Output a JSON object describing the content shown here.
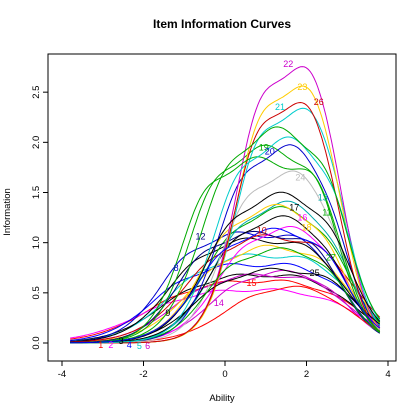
{
  "chart_data": {
    "type": "line",
    "title": "Item Information Curves",
    "xlabel": "Ability",
    "ylabel": "Information",
    "xlim": [
      -4,
      4
    ],
    "ylim": [
      0,
      3
    ],
    "x_ticks": [
      "-4",
      "-2",
      "0",
      "2",
      "4"
    ],
    "x_tick_values": [
      -4,
      -2,
      0,
      2,
      4
    ],
    "y_ticks": [
      "0.0",
      "0.5",
      "1.0",
      "1.5",
      "2.0",
      "2.5"
    ],
    "y_tick_values": [
      0,
      0.5,
      1.0,
      1.5,
      2.0,
      2.5
    ],
    "grid": false,
    "series": [
      {
        "label": "1",
        "color": "#ff0000",
        "a": 0.85,
        "b_lo": -1.9,
        "b_hi": 3.3,
        "max": 0.64,
        "lx": -3.05,
        "ly": -0.02
      },
      {
        "label": "2",
        "color": "#ff00ff",
        "a": 0.8,
        "b_lo": -2.1,
        "b_hi": 3.3,
        "max": 0.55,
        "lx": -2.8,
        "ly": -0.02
      },
      {
        "label": "3",
        "color": "#000000",
        "a": 0.95,
        "b_lo": -1.6,
        "b_hi": 3.2,
        "max": 0.7,
        "lx": -2.55,
        "ly": 0.02
      },
      {
        "label": "4",
        "color": "#0000ff",
        "a": 1.0,
        "b_lo": -1.8,
        "b_hi": 3.2,
        "max": 0.8,
        "lx": -2.35,
        "ly": -0.02
      },
      {
        "label": "5",
        "color": "#00cccc",
        "a": 1.0,
        "b_lo": -1.4,
        "b_hi": 3.2,
        "max": 0.9,
        "lx": -2.1,
        "ly": -0.03
      },
      {
        "label": "6",
        "color": "#cc00cc",
        "a": 1.0,
        "b_lo": -1.3,
        "b_hi": 3.1,
        "max": 0.7,
        "lx": -1.9,
        "ly": -0.03
      },
      {
        "label": "7",
        "color": "#ffcc00",
        "a": 1.0,
        "b_lo": -0.9,
        "b_hi": 3.1,
        "max": 1.0,
        "lx": -1.1,
        "ly": 0.55
      },
      {
        "label": "8",
        "color": "#0000cc",
        "a": 1.2,
        "b_lo": -1.6,
        "b_hi": 2.9,
        "max": 1.1,
        "lx": -1.2,
        "ly": 0.75
      },
      {
        "label": "9",
        "color": "#000000",
        "a": 1.1,
        "b_lo": -1.4,
        "b_hi": 3.0,
        "max": 1.05,
        "lx": -1.4,
        "ly": 0.3
      },
      {
        "label": "10",
        "color": "#cc0000",
        "a": 1.0,
        "b_lo": -1.0,
        "b_hi": 3.2,
        "max": 1.1,
        "lx": 0.9,
        "ly": 1.12
      },
      {
        "label": "11",
        "color": "#00aa00",
        "a": 1.1,
        "b_lo": -0.5,
        "b_hi": 3.0,
        "max": 1.4,
        "lx": 2.5,
        "ly": 1.3
      },
      {
        "label": "12",
        "color": "#000080",
        "a": 1.3,
        "b_lo": -1.2,
        "b_hi": 2.9,
        "max": 1.1,
        "lx": -0.6,
        "ly": 1.06
      },
      {
        "label": "13",
        "color": "#00aaaa",
        "a": 1.2,
        "b_lo": -0.3,
        "b_hi": 3.0,
        "max": 1.45,
        "lx": 2.4,
        "ly": 1.45
      },
      {
        "label": "14",
        "color": "#cc00cc",
        "a": 1.1,
        "b_lo": -0.4,
        "b_hi": 3.0,
        "max": 0.75,
        "lx": -0.15,
        "ly": 0.4
      },
      {
        "label": "15",
        "color": "#ff0000",
        "a": 1.0,
        "b_lo": 0.0,
        "b_hi": 3.1,
        "max": 0.62,
        "lx": 0.65,
        "ly": 0.6
      },
      {
        "label": "16",
        "color": "#ff00ff",
        "a": 1.2,
        "b_lo": -0.2,
        "b_hi": 3.0,
        "max": 1.2,
        "lx": 1.9,
        "ly": 1.25
      },
      {
        "label": "17",
        "color": "#000000",
        "a": 1.2,
        "b_lo": -0.4,
        "b_hi": 2.9,
        "max": 1.3,
        "lx": 1.7,
        "ly": 1.35
      },
      {
        "label": "18",
        "color": "#ffcc00",
        "a": 1.2,
        "b_lo": -0.6,
        "b_hi": 2.9,
        "max": 1.4,
        "lx": 2.0,
        "ly": 1.15
      },
      {
        "label": "19",
        "color": "#00aa00",
        "a": 1.4,
        "b_lo": -0.9,
        "b_hi": 2.8,
        "max": 1.95,
        "lx": 0.95,
        "ly": 1.95
      },
      {
        "label": "20",
        "color": "#0000cc",
        "a": 1.4,
        "b_lo": -0.2,
        "b_hi": 2.9,
        "max": 2.0,
        "lx": 1.1,
        "ly": 1.91
      },
      {
        "label": "21",
        "color": "#00cccc",
        "a": 1.6,
        "b_lo": 0.2,
        "b_hi": 3.0,
        "max": 2.38,
        "lx": 1.35,
        "ly": 2.35
      },
      {
        "label": "22",
        "color": "#cc00cc",
        "a": 1.6,
        "b_lo": 0.25,
        "b_hi": 2.9,
        "max": 2.85,
        "lx": 1.55,
        "ly": 2.78
      },
      {
        "label": "23",
        "color": "#ffcc00",
        "a": 1.6,
        "b_lo": 0.25,
        "b_hi": 2.9,
        "max": 2.65,
        "lx": 1.9,
        "ly": 2.55
      },
      {
        "label": "24",
        "color": "#bbbbbb",
        "a": 1.4,
        "b_lo": -0.1,
        "b_hi": 2.9,
        "max": 1.75,
        "lx": 1.85,
        "ly": 1.65
      },
      {
        "label": "25",
        "color": "#000000",
        "a": 1.1,
        "b_lo": -0.8,
        "b_hi": 3.3,
        "max": 0.75,
        "lx": 2.2,
        "ly": 0.7
      },
      {
        "label": "26",
        "color": "#cc0000",
        "a": 1.6,
        "b_lo": 0.2,
        "b_hi": 2.85,
        "max": 2.48,
        "lx": 2.3,
        "ly": 2.4
      },
      {
        "label": "27",
        "color": "#00aa00",
        "a": 1.3,
        "b_lo": -0.5,
        "b_hi": 3.0,
        "max": 0.95,
        "lx": 2.6,
        "ly": 0.85
      },
      {
        "label": "",
        "color": "#00aa00",
        "a": 1.5,
        "b_lo": -1.1,
        "b_hi": 2.9,
        "max": 1.82,
        "lx": null,
        "ly": null
      },
      {
        "label": "",
        "color": "#00cccc",
        "a": 1.4,
        "b_lo": -0.3,
        "b_hi": 3.05,
        "max": 2.05,
        "lx": null,
        "ly": null
      },
      {
        "label": "",
        "color": "#00aa00",
        "a": 1.3,
        "b_lo": -0.6,
        "b_hi": 3.0,
        "max": 2.15,
        "lx": null,
        "ly": null
      },
      {
        "label": "",
        "color": "#000000",
        "a": 1.2,
        "b_lo": -0.5,
        "b_hi": 3.05,
        "max": 1.52,
        "lx": null,
        "ly": null
      },
      {
        "label": "",
        "color": "#0000ff",
        "a": 1.2,
        "b_lo": -0.7,
        "b_hi": 3.0,
        "max": 1.15,
        "lx": null,
        "ly": null
      }
    ]
  }
}
